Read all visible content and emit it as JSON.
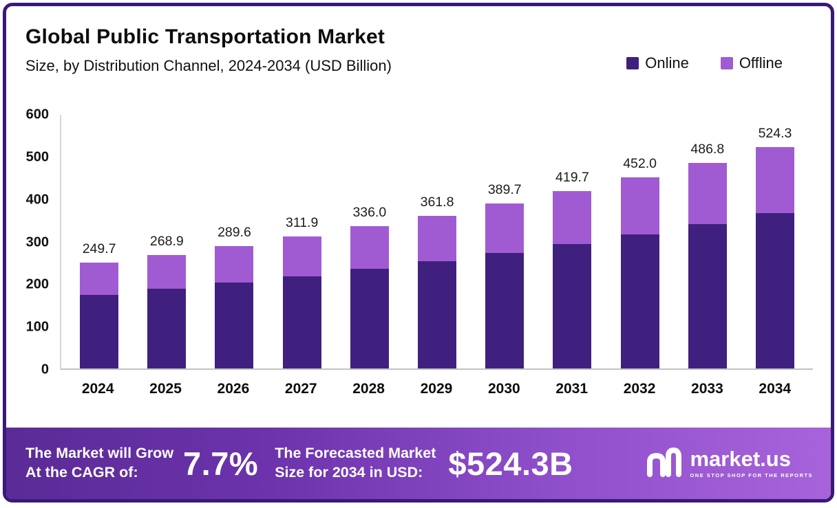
{
  "header": {
    "title": "Global Public Transportation Market",
    "subtitle": "Size, by Distribution Channel, 2024-2034 (USD Billion)"
  },
  "legend": [
    {
      "label": "Online",
      "color": "#40207E"
    },
    {
      "label": "Offline",
      "color": "#A05BD3"
    }
  ],
  "chart_data": {
    "type": "bar",
    "stacked": true,
    "title": "Global Public Transportation Market Size, by Distribution Channel, 2024-2034 (USD Billion)",
    "categories": [
      "2024",
      "2025",
      "2026",
      "2027",
      "2028",
      "2029",
      "2030",
      "2031",
      "2032",
      "2033",
      "2034"
    ],
    "series": [
      {
        "name": "Online",
        "color": "#40207E",
        "values": [
          174.8,
          188.2,
          202.7,
          218.3,
          235.2,
          253.3,
          272.8,
          293.8,
          316.4,
          340.8,
          367.0
        ]
      },
      {
        "name": "Offline",
        "color": "#A05BD3",
        "values": [
          74.9,
          80.7,
          86.9,
          93.6,
          100.8,
          108.5,
          116.9,
          125.9,
          135.6,
          146.0,
          157.3
        ]
      }
    ],
    "totals": [
      249.7,
      268.9,
      289.6,
      311.9,
      336.0,
      361.8,
      389.7,
      419.7,
      452.0,
      486.8,
      524.3
    ],
    "total_labels": [
      "249.7",
      "268.9",
      "289.6",
      "311.9",
      "336.0",
      "361.8",
      "389.7",
      "419.7",
      "452.0",
      "486.8",
      "524.3"
    ],
    "xlabel": "",
    "ylabel": "",
    "ylim": [
      0,
      600
    ],
    "yticks": [
      0,
      100,
      200,
      300,
      400,
      500,
      600
    ],
    "grid": false,
    "legend_position": "top-right"
  },
  "footer": {
    "cagr_line1": "The Market will Grow",
    "cagr_line2": "At the CAGR of:",
    "cagr_value": "7.7%",
    "forecast_line1": "The Forecasted Market",
    "forecast_line2": "Size for 2034 in USD:",
    "forecast_value": "$524.3B",
    "brand": "market.us",
    "brand_tagline": "ONE STOP SHOP FOR THE REPORTS"
  }
}
